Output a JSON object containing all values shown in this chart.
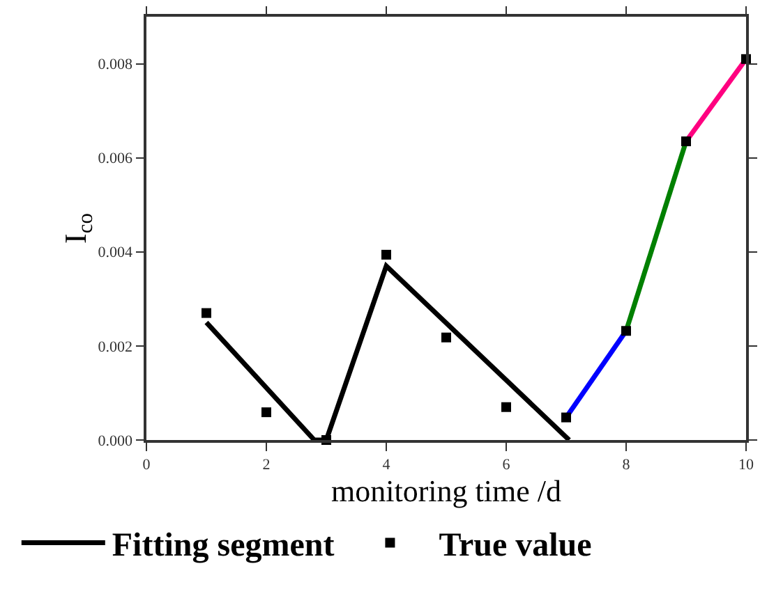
{
  "chart_data": {
    "type": "line",
    "xlabel": "monitoring time /d",
    "ylabel": "I$_{co}$",
    "xlim": [
      0,
      10
    ],
    "xticks": [
      0,
      2,
      4,
      6,
      8,
      10
    ],
    "ylim": [
      0,
      0.009
    ],
    "yticks": [
      {
        "value": 0,
        "label": "0.000"
      },
      {
        "value": 0.002,
        "label": "0.002"
      },
      {
        "value": 0.004,
        "label": "0.004"
      },
      {
        "value": 0.006,
        "label": "0.006"
      },
      {
        "value": 0.008,
        "label": "0.008"
      }
    ],
    "grid": false,
    "legend": "bottom",
    "line_style": "solid",
    "series": [
      {
        "name": "Fitting segment",
        "color": "#000000",
        "marker": "none",
        "x": [
          1,
          2.8,
          3,
          4,
          7.05
        ],
        "values": [
          0.0025,
          0,
          0,
          0.0037,
          0
        ]
      },
      {
        "color": "#0000ff",
        "marker": "none",
        "x": [
          7,
          8
        ],
        "values": [
          0.00048,
          0.00232
        ]
      },
      {
        "color": "#008000",
        "marker": "none",
        "x": [
          8,
          9
        ],
        "values": [
          0.00232,
          0.00635
        ]
      },
      {
        "color": "#ff0080",
        "marker": "none",
        "x": [
          9,
          10
        ],
        "values": [
          0.00635,
          0.0081
        ]
      },
      {
        "name": "True value",
        "type": "scatter",
        "color": "#000000",
        "marker": "square",
        "x": [
          1,
          2,
          3,
          4,
          5,
          6,
          7,
          8,
          9,
          10
        ],
        "values": [
          0.0027,
          0.00059,
          0,
          0.00394,
          0.00218,
          0.0007,
          0.00048,
          0.00232,
          0.00635,
          0.0081
        ]
      }
    ]
  }
}
